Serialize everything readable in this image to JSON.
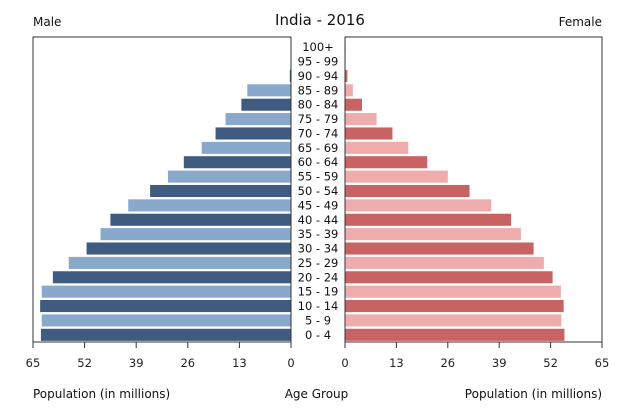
{
  "header": {
    "title": "India - 2016",
    "left_label": "Male",
    "right_label": "Female"
  },
  "chart_data": {
    "type": "bar",
    "title": "India - 2016",
    "orientation": "horizontal-population-pyramid",
    "categories": [
      "0 - 4",
      "5 - 9",
      "10 - 14",
      "15 - 19",
      "20 - 24",
      "25 - 29",
      "30 - 34",
      "35 - 39",
      "40 - 44",
      "45 - 49",
      "50 - 54",
      "55 - 59",
      "60 - 64",
      "65 - 69",
      "70 - 74",
      "75 - 79",
      "80 - 84",
      "85 - 89",
      "90 - 94",
      "95 - 99",
      "100+"
    ],
    "series": [
      {
        "name": "Male",
        "values": [
          63.0,
          62.8,
          63.2,
          62.8,
          60.0,
          56.0,
          51.5,
          48.0,
          45.5,
          41.0,
          35.5,
          31.0,
          27.0,
          22.5,
          19.0,
          16.5,
          12.5,
          11.0,
          0.3,
          0.1,
          0.05
        ]
      },
      {
        "name": "Female",
        "values": [
          55.5,
          54.7,
          55.3,
          54.6,
          52.5,
          50.3,
          47.7,
          44.5,
          42.0,
          37.0,
          31.5,
          26.0,
          20.8,
          16.0,
          12.0,
          8.0,
          4.3,
          2.0,
          0.6,
          0.15,
          0.05
        ]
      }
    ],
    "x_ticks_left": [
      "65",
      "52",
      "39",
      "26",
      "13",
      "0"
    ],
    "x_ticks_right": [
      "0",
      "13",
      "26",
      "39",
      "52",
      "65"
    ],
    "xlim": [
      0,
      65
    ],
    "xlabel_left": "Population (in millions)",
    "xlabel_center": "Age Group",
    "xlabel_right": "Population (in millions)",
    "grid": false,
    "colors": {
      "male_dark": "#3f5c80",
      "male_light": "#88a9cc",
      "female_dark": "#c96262",
      "female_light": "#eeacac"
    }
  }
}
